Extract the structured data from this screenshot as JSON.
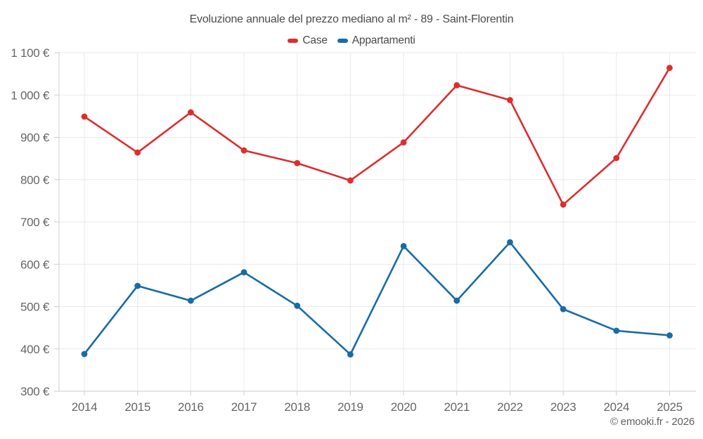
{
  "header": {
    "title": "Evoluzione annuale del prezzo mediano al m² - 89 - Saint-Florentin"
  },
  "legend": {
    "items": [
      {
        "label": "Case",
        "color": "#dc2e2e"
      },
      {
        "label": "Appartamenti",
        "color": "#176ca6"
      }
    ]
  },
  "footer": {
    "credit": "© emooki.fr - 2026"
  },
  "colors": {
    "grid": "#e9e9e9",
    "axis": "#cccccc",
    "tick": "#cccccc",
    "label": "#666666"
  },
  "chart_data": {
    "type": "line",
    "title": "Evoluzione annuale del prezzo mediano al m² - 89 - Saint-Florentin",
    "categories": [
      "2014",
      "2015",
      "2016",
      "2017",
      "2018",
      "2019",
      "2020",
      "2021",
      "2022",
      "2023",
      "2024",
      "2025"
    ],
    "series": [
      {
        "name": "Case",
        "color": "#dc2e2e",
        "values": [
          949,
          864,
          959,
          869,
          839,
          798,
          888,
          1023,
          988,
          741,
          851,
          1064
        ]
      },
      {
        "name": "Appartamenti",
        "color": "#176ca6",
        "values": [
          388,
          549,
          514,
          581,
          502,
          387,
          643,
          514,
          652,
          494,
          443,
          432
        ]
      }
    ],
    "xlabel": "",
    "ylabel": "",
    "ylim": [
      300,
      1100
    ],
    "ytick_step": 100,
    "ytick_labels": [
      "300 €",
      "400 €",
      "500 €",
      "600 €",
      "700 €",
      "800 €",
      "900 €",
      "1 000 €",
      "1 100 €"
    ],
    "grid": true,
    "legend_position": "top",
    "credit": "© emooki.fr - 2026"
  }
}
